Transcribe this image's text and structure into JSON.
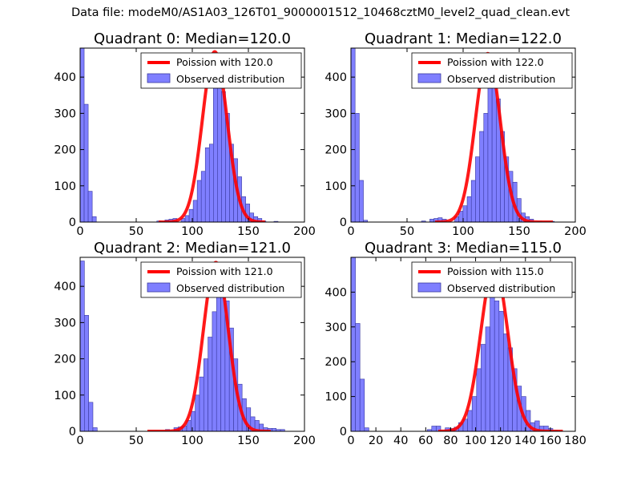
{
  "figure": {
    "suptitle": "Data file: modeM0/AS1A03_126T01_9000001512_10468cztM0_level2_quad_clean.evt",
    "hist_color": "#7f7fff",
    "hist_edge": "#3a3aa0",
    "curve_color": "#ff0000",
    "legend_curve_prefix": "Poission with ",
    "legend_hist_label": "Observed distribution"
  },
  "chart_data": [
    {
      "type": "bar",
      "title": "Quadrant 0: Median=120.0",
      "poisson_mean": 120.0,
      "poisson_label": "Poission with 120.0",
      "xlim": [
        0,
        200
      ],
      "ylim": [
        0,
        480
      ],
      "xticks": [
        0,
        50,
        100,
        150,
        200
      ],
      "yticks": [
        0,
        100,
        200,
        300,
        400
      ],
      "bin_width": 3.6,
      "bins": [
        [
          0,
          490
        ],
        [
          3.6,
          325
        ],
        [
          7.2,
          85
        ],
        [
          10.8,
          15
        ],
        [
          68.4,
          3
        ],
        [
          75.6,
          6
        ],
        [
          79.2,
          8
        ],
        [
          82.8,
          10
        ],
        [
          90,
          10
        ],
        [
          93.6,
          18
        ],
        [
          97.2,
          35
        ],
        [
          100.8,
          60
        ],
        [
          104.4,
          115
        ],
        [
          108,
          140
        ],
        [
          111.6,
          205
        ],
        [
          115.2,
          215
        ],
        [
          118.8,
          380
        ],
        [
          122.4,
          400
        ],
        [
          126,
          360
        ],
        [
          129.6,
          300
        ],
        [
          133.2,
          215
        ],
        [
          136.8,
          175
        ],
        [
          140.4,
          125
        ],
        [
          144,
          70
        ],
        [
          147.6,
          50
        ],
        [
          151.2,
          25
        ],
        [
          154.8,
          15
        ],
        [
          158.4,
          10
        ],
        [
          162,
          3
        ],
        [
          172.8,
          2
        ]
      ],
      "curve_peak": 470,
      "curve_sigma": 10.95,
      "curve_range": [
        70,
        165
      ]
    },
    {
      "type": "bar",
      "title": "Quadrant 1: Median=122.0",
      "poisson_mean": 122.0,
      "poisson_label": "Poission with 122.0",
      "xlim": [
        0,
        200
      ],
      "ylim": [
        0,
        480
      ],
      "xticks": [
        0,
        50,
        100,
        150,
        200
      ],
      "yticks": [
        0,
        100,
        200,
        300,
        400
      ],
      "bin_width": 3.7,
      "bins": [
        [
          0,
          480
        ],
        [
          3.7,
          300
        ],
        [
          7.4,
          115
        ],
        [
          11.1,
          5
        ],
        [
          62.9,
          3
        ],
        [
          70.3,
          8
        ],
        [
          74,
          10
        ],
        [
          77.7,
          12
        ],
        [
          81.4,
          8
        ],
        [
          92.5,
          15
        ],
        [
          96.2,
          30
        ],
        [
          99.9,
          45
        ],
        [
          103.6,
          70
        ],
        [
          107.3,
          115
        ],
        [
          111,
          180
        ],
        [
          114.7,
          250
        ],
        [
          118.4,
          300
        ],
        [
          122.1,
          420
        ],
        [
          125.8,
          380
        ],
        [
          129.5,
          340
        ],
        [
          133.2,
          250
        ],
        [
          136.9,
          180
        ],
        [
          140.6,
          140
        ],
        [
          144.3,
          110
        ],
        [
          148,
          65
        ],
        [
          151.7,
          25
        ],
        [
          155.4,
          15
        ],
        [
          159.1,
          8
        ],
        [
          166.5,
          3
        ],
        [
          177.6,
          2
        ]
      ],
      "curve_peak": 465,
      "curve_sigma": 11.05,
      "curve_range": [
        75,
        180
      ]
    },
    {
      "type": "bar",
      "title": "Quadrant 2: Median=121.0",
      "poisson_mean": 121.0,
      "poisson_label": "Poission with 121.0",
      "xlim": [
        0,
        200
      ],
      "ylim": [
        0,
        480
      ],
      "xticks": [
        0,
        50,
        100,
        150,
        200
      ],
      "yticks": [
        0,
        100,
        200,
        300,
        400
      ],
      "bin_width": 3.8,
      "bins": [
        [
          0,
          470
        ],
        [
          3.8,
          320
        ],
        [
          7.6,
          80
        ],
        [
          11.4,
          10
        ],
        [
          76,
          5
        ],
        [
          83.6,
          10
        ],
        [
          87.4,
          12
        ],
        [
          91.2,
          15
        ],
        [
          95,
          30
        ],
        [
          98.8,
          55
        ],
        [
          102.6,
          100
        ],
        [
          106.4,
          150
        ],
        [
          110.2,
          200
        ],
        [
          114,
          260
        ],
        [
          117.8,
          330
        ],
        [
          121.6,
          450
        ],
        [
          125.4,
          440
        ],
        [
          129.2,
          360
        ],
        [
          133,
          285
        ],
        [
          136.8,
          200
        ],
        [
          140.6,
          130
        ],
        [
          144.4,
          90
        ],
        [
          148.2,
          65
        ],
        [
          152,
          40
        ],
        [
          155.8,
          30
        ],
        [
          159.6,
          20
        ],
        [
          163.4,
          10
        ],
        [
          167.2,
          8
        ],
        [
          171,
          8
        ],
        [
          174.8,
          5
        ],
        [
          178.6,
          5
        ]
      ],
      "curve_peak": 466,
      "curve_sigma": 11.0,
      "curve_range": [
        60,
        170
      ]
    },
    {
      "type": "bar",
      "title": "Quadrant 3: Median=115.0",
      "poisson_mean": 115.0,
      "poisson_label": "Poission with 115.0",
      "xlim": [
        0,
        180
      ],
      "ylim": [
        0,
        500
      ],
      "xticks": [
        0,
        20,
        40,
        60,
        80,
        100,
        120,
        140,
        160,
        180
      ],
      "yticks": [
        0,
        100,
        200,
        300,
        400
      ],
      "bin_width": 3.6,
      "bins": [
        [
          0,
          500
        ],
        [
          3.6,
          310
        ],
        [
          7.2,
          150
        ],
        [
          10.8,
          10
        ],
        [
          61.2,
          5
        ],
        [
          64.8,
          15
        ],
        [
          68.4,
          15
        ],
        [
          75.6,
          10
        ],
        [
          79.2,
          8
        ],
        [
          82.8,
          12
        ],
        [
          86.4,
          25
        ],
        [
          90,
          35
        ],
        [
          93.6,
          60
        ],
        [
          97.2,
          100
        ],
        [
          100.8,
          180
        ],
        [
          104.4,
          250
        ],
        [
          108,
          300
        ],
        [
          111.6,
          450
        ],
        [
          115.2,
          375
        ],
        [
          118.8,
          345
        ],
        [
          122.4,
          280
        ],
        [
          126,
          240
        ],
        [
          129.6,
          180
        ],
        [
          133.2,
          130
        ],
        [
          136.8,
          100
        ],
        [
          140.4,
          60
        ],
        [
          144,
          25
        ],
        [
          147.6,
          30
        ],
        [
          151.2,
          15
        ],
        [
          154.8,
          15
        ],
        [
          158.4,
          8
        ],
        [
          162,
          3
        ]
      ],
      "curve_peak": 476,
      "curve_sigma": 10.72,
      "curve_range": [
        70,
        170
      ]
    }
  ]
}
